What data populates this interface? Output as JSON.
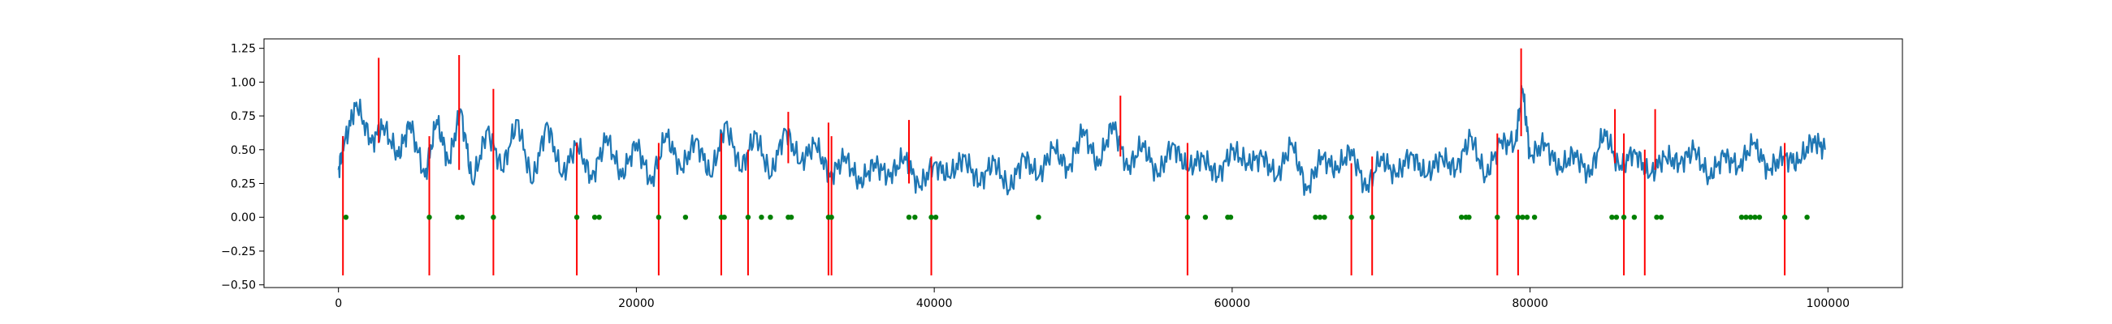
{
  "chart_data": {
    "type": "line",
    "title": "",
    "xlabel": "",
    "ylabel": "",
    "xlim": [
      -5000,
      105000
    ],
    "ylim": [
      -0.52,
      1.32
    ],
    "grid": false,
    "legend": "none",
    "xticks": [
      0,
      20000,
      40000,
      60000,
      80000,
      100000
    ],
    "xtick_labels": [
      "0",
      "20000",
      "40000",
      "60000",
      "80000",
      "100000"
    ],
    "yticks": [
      -0.5,
      -0.25,
      0.0,
      0.25,
      0.5,
      0.75,
      1.0,
      1.25
    ],
    "ytick_labels": [
      "−0.50",
      "−0.25",
      "0.00",
      "0.25",
      "0.50",
      "0.75",
      "1.00",
      "1.25"
    ],
    "colors": {
      "signal": "#1f77b4",
      "spikes": "#ff0000",
      "markers": "#008000"
    },
    "series": [
      {
        "role": "signal",
        "x": [
          0,
          400,
          1200,
          2200,
          3000,
          4000,
          4800,
          5800,
          6600,
          7400,
          8200,
          9000,
          10000,
          11000,
          12000,
          13000,
          14000,
          15000,
          16000,
          17000,
          18000,
          19000,
          20000,
          21000,
          22000,
          23000,
          24000,
          25000,
          26000,
          27000,
          28000,
          29000,
          30000,
          31000,
          32000,
          33000,
          34000,
          35000,
          36000,
          37000,
          38000,
          39000,
          40000,
          41000,
          42000,
          43000,
          44000,
          45000,
          46000,
          47000,
          48000,
          49000,
          50000,
          51000,
          52000,
          53000,
          54000,
          55000,
          56000,
          57000,
          58000,
          59000,
          60000,
          61000,
          62000,
          63000,
          64000,
          65000,
          66000,
          67000,
          68000,
          69000,
          70000,
          71000,
          72000,
          73000,
          74000,
          75000,
          76000,
          77000,
          78000,
          79000,
          79500,
          80000,
          81000,
          82000,
          83000,
          84000,
          85000,
          86000,
          87000,
          88000,
          89000,
          90000,
          91000,
          92000,
          93000,
          94000,
          95000,
          96000,
          97000,
          98000,
          99000,
          99800
        ],
        "y": [
          0.35,
          0.55,
          0.85,
          0.55,
          0.68,
          0.45,
          0.7,
          0.3,
          0.72,
          0.4,
          0.8,
          0.25,
          0.65,
          0.35,
          0.72,
          0.25,
          0.7,
          0.3,
          0.55,
          0.28,
          0.6,
          0.3,
          0.55,
          0.25,
          0.62,
          0.35,
          0.58,
          0.3,
          0.7,
          0.35,
          0.62,
          0.3,
          0.65,
          0.4,
          0.55,
          0.3,
          0.45,
          0.25,
          0.4,
          0.3,
          0.45,
          0.22,
          0.4,
          0.3,
          0.45,
          0.25,
          0.42,
          0.2,
          0.45,
          0.3,
          0.52,
          0.35,
          0.65,
          0.38,
          0.7,
          0.35,
          0.55,
          0.3,
          0.55,
          0.35,
          0.45,
          0.3,
          0.5,
          0.4,
          0.45,
          0.3,
          0.55,
          0.2,
          0.45,
          0.35,
          0.5,
          0.2,
          0.45,
          0.3,
          0.48,
          0.3,
          0.45,
          0.35,
          0.6,
          0.3,
          0.55,
          0.55,
          0.95,
          0.45,
          0.55,
          0.35,
          0.48,
          0.3,
          0.65,
          0.35,
          0.5,
          0.3,
          0.45,
          0.4,
          0.5,
          0.3,
          0.45,
          0.38,
          0.55,
          0.35,
          0.45,
          0.4,
          0.58,
          0.5
        ]
      },
      {
        "role": "spikes",
        "segments": [
          {
            "x": 300,
            "y": [
              -0.43,
              0.6
            ]
          },
          {
            "x": 2700,
            "y": [
              0.55,
              1.18
            ]
          },
          {
            "x": 6100,
            "y": [
              -0.43,
              0.6
            ]
          },
          {
            "x": 8100,
            "y": [
              0.35,
              1.2
            ]
          },
          {
            "x": 10400,
            "y": [
              -0.43,
              0.95
            ]
          },
          {
            "x": 16000,
            "y": [
              -0.43,
              0.55
            ]
          },
          {
            "x": 21500,
            "y": [
              -0.43,
              0.55
            ]
          },
          {
            "x": 25700,
            "y": [
              -0.43,
              0.62
            ]
          },
          {
            "x": 27500,
            "y": [
              -0.43,
              0.5
            ]
          },
          {
            "x": 30200,
            "y": [
              0.4,
              0.78
            ]
          },
          {
            "x": 32900,
            "y": [
              -0.43,
              0.7
            ]
          },
          {
            "x": 33100,
            "y": [
              -0.43,
              0.6
            ]
          },
          {
            "x": 38300,
            "y": [
              0.25,
              0.72
            ]
          },
          {
            "x": 39800,
            "y": [
              -0.43,
              0.45
            ]
          },
          {
            "x": 52500,
            "y": [
              0.45,
              0.9
            ]
          },
          {
            "x": 57000,
            "y": [
              -0.43,
              0.55
            ]
          },
          {
            "x": 68000,
            "y": [
              -0.43,
              0.4
            ]
          },
          {
            "x": 69400,
            "y": [
              -0.43,
              0.45
            ]
          },
          {
            "x": 77800,
            "y": [
              -0.43,
              0.62
            ]
          },
          {
            "x": 79200,
            "y": [
              -0.43,
              0.5
            ]
          },
          {
            "x": 79400,
            "y": [
              0.6,
              1.25
            ]
          },
          {
            "x": 85700,
            "y": [
              0.4,
              0.8
            ]
          },
          {
            "x": 86300,
            "y": [
              -0.43,
              0.62
            ]
          },
          {
            "x": 87700,
            "y": [
              -0.43,
              0.5
            ]
          },
          {
            "x": 88400,
            "y": [
              0.35,
              0.8
            ]
          },
          {
            "x": 97100,
            "y": [
              -0.43,
              0.55
            ]
          }
        ]
      },
      {
        "role": "markers",
        "y_value": 0.0,
        "x": [
          500,
          6100,
          8000,
          8300,
          10400,
          16000,
          17200,
          17500,
          21500,
          23300,
          25700,
          25900,
          27500,
          28400,
          29000,
          30200,
          30400,
          32900,
          33100,
          38300,
          38700,
          39800,
          40100,
          47000,
          57000,
          58200,
          59700,
          59900,
          65600,
          65900,
          66200,
          68000,
          69400,
          75400,
          75700,
          75900,
          77800,
          79200,
          79500,
          79800,
          80300,
          85500,
          85800,
          86300,
          87000,
          88500,
          88800,
          94200,
          94500,
          94800,
          95100,
          95400,
          97100,
          98600
        ]
      }
    ]
  }
}
